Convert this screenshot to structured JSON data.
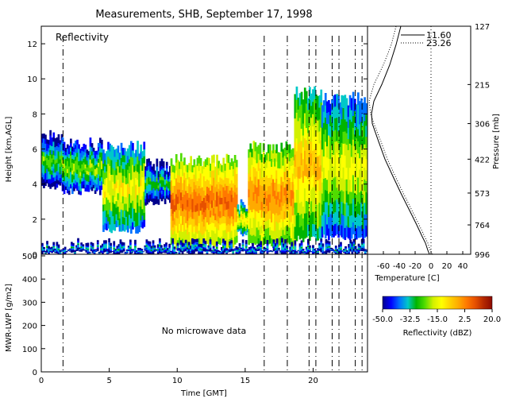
{
  "title": "Measurements, SHB, September 17, 1998",
  "reflectivity_panel": {
    "label": "Reflectivity",
    "ylabel": "Height [km,AGL]",
    "yticks": [
      "0",
      "2",
      "4",
      "6",
      "8",
      "10",
      "12"
    ]
  },
  "lwp_panel": {
    "ylabel": "MWR-LWP [g/m2]",
    "yticks": [
      "0",
      "100",
      "200",
      "300",
      "400",
      "500"
    ],
    "note": "No microwave data",
    "xlabel": "Time [GMT]",
    "xticks": [
      "0",
      "5",
      "10",
      "15",
      "20"
    ]
  },
  "sounding_panel": {
    "xlabel": "Temperature [C]",
    "xticks": [
      "-60",
      "-40",
      "-20",
      "0",
      "20",
      "40"
    ],
    "ylabel": "Pressure [mb]",
    "pressure_ticks": [
      "127",
      "215",
      "306",
      "422",
      "573",
      "764",
      "996"
    ],
    "legend": [
      {
        "label": "11.60",
        "style": "solid"
      },
      {
        "label": "23.26",
        "style": "dotted"
      }
    ]
  },
  "colorbar": {
    "label": "Reflectivity (dBZ)",
    "ticks": [
      "-50.0",
      "-32.5",
      "-15.0",
      "2.5",
      "20.0"
    ],
    "colors": [
      "#00008c",
      "#0000ff",
      "#0070ff",
      "#00c8c8",
      "#00b400",
      "#50dc00",
      "#d2f000",
      "#ffff00",
      "#ffd200",
      "#ffaa00",
      "#ff7800",
      "#e65000",
      "#b42800",
      "#8c0a00"
    ]
  },
  "chart_data": [
    {
      "type": "heatmap",
      "ylabel": "Height [km,AGL]",
      "xlabel": "Time [GMT]",
      "xlim": [
        0,
        24
      ],
      "ylim": [
        0,
        13
      ],
      "sounding_times": [
        1.6,
        16.4,
        18.1,
        19.7,
        20.2,
        21.4,
        21.9,
        23.1,
        23.6
      ],
      "blobs": [
        {
          "t0": 0.0,
          "t1": 1.5,
          "z0": 3.9,
          "z1": 6.8,
          "core": -22
        },
        {
          "t0": 1.5,
          "t1": 4.5,
          "z0": 3.6,
          "z1": 6.2,
          "core": -18
        },
        {
          "t0": 4.5,
          "t1": 7.6,
          "z0": 1.4,
          "z1": 6.0,
          "core": -10
        },
        {
          "t0": 7.6,
          "t1": 9.5,
          "z0": 3.0,
          "z1": 5.0,
          "core": -25
        },
        {
          "t0": 9.5,
          "t1": 14.4,
          "z0": 0.5,
          "z1": 5.3,
          "core": 8
        },
        {
          "t0": 14.4,
          "t1": 15.2,
          "z0": 1.2,
          "z1": 2.7,
          "core": -8
        },
        {
          "t0": 15.2,
          "t1": 18.6,
          "z0": 0.5,
          "z1": 6.0,
          "core": 4
        },
        {
          "t0": 18.6,
          "t1": 20.6,
          "z0": 0.9,
          "z1": 9.1,
          "core": -2
        },
        {
          "t0": 20.6,
          "t1": 24.0,
          "z0": 1.0,
          "z1": 8.8,
          "core": -12
        },
        {
          "t0": 0.0,
          "t1": 24.0,
          "z0": 0.05,
          "z1": 0.45,
          "core": -30
        }
      ]
    },
    {
      "type": "line",
      "title": "",
      "ylabel": "MWR-LWP [g/m2]",
      "ylim": [
        0,
        500
      ],
      "series": []
    },
    {
      "type": "line",
      "xlabel": "Temperature [C]",
      "ylabel": "Pressure [mb]",
      "xlim": [
        -80,
        50
      ],
      "ylim": [
        996,
        127
      ],
      "series": [
        {
          "name": "11.60",
          "style": "solid",
          "p": [
            996,
            960,
            900,
            850,
            764,
            700,
            573,
            500,
            422,
            360,
            306,
            280,
            250,
            215,
            180,
            150,
            127
          ],
          "t": [
            -2,
            -4,
            -7,
            -11,
            -18,
            -24,
            -38,
            -47,
            -58,
            -66,
            -74,
            -75,
            -72,
            -62,
            -52,
            -44,
            -38
          ]
        },
        {
          "name": "23.26",
          "style": "dotted",
          "p": [
            996,
            960,
            900,
            850,
            764,
            700,
            573,
            500,
            422,
            360,
            306,
            280,
            250,
            215,
            180,
            150,
            127
          ],
          "t": [
            2,
            -1,
            -4,
            -8,
            -15,
            -21,
            -35,
            -44,
            -55,
            -63,
            -72,
            -76,
            -78,
            -72,
            -60,
            -50,
            -44
          ]
        }
      ]
    }
  ]
}
